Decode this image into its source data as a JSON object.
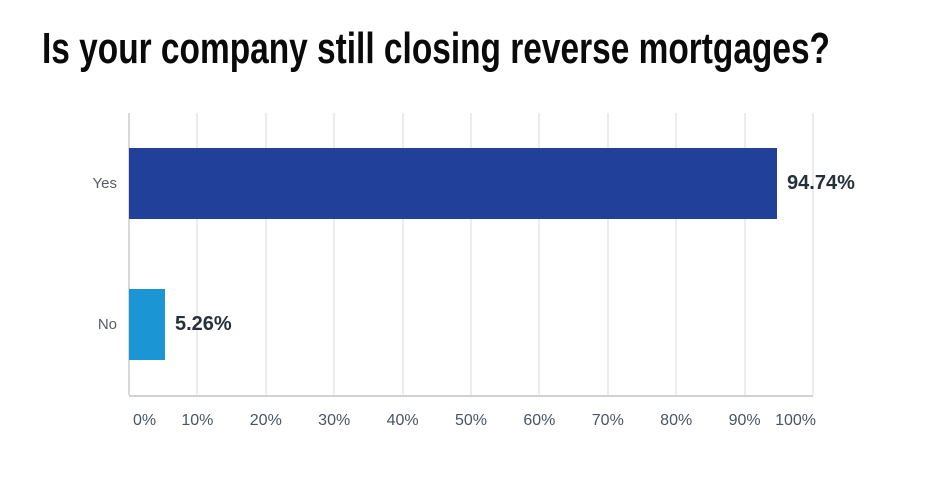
{
  "title": "Is your company still closing reverse mortgages?",
  "chart_data": {
    "type": "bar",
    "orientation": "horizontal",
    "title": "Is your company still closing reverse mortgages?",
    "categories": [
      "Yes",
      "No"
    ],
    "values": [
      94.74,
      5.26
    ],
    "value_labels": [
      "94.74%",
      "5.26%"
    ],
    "bar_colors": [
      "#21409a",
      "#1b95d3"
    ],
    "xlabel": "",
    "ylabel": "",
    "xlim": [
      0,
      100
    ],
    "x_ticks": [
      "0%",
      "10%",
      "20%",
      "30%",
      "40%",
      "50%",
      "60%",
      "70%",
      "80%",
      "90%",
      "100%"
    ],
    "grid": "vertical-only",
    "legend": "none"
  },
  "colors": {
    "background": "#ffffff",
    "title": "#0a0a0a",
    "bar_yes": "#21409a",
    "bar_no": "#1b95d3",
    "gridline": "#ececec",
    "axis_line_left": "#d9d9d9",
    "axis_line_bottom": "#d2d2d2",
    "tick_label": "#4a5560",
    "category_label": "#595d63",
    "value_label": "#26303b"
  }
}
